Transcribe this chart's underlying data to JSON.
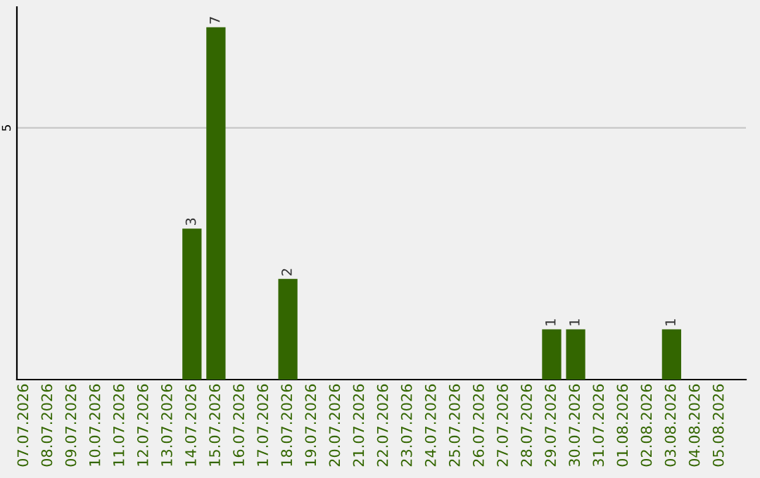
{
  "chart_data": {
    "type": "bar",
    "categories": [
      "07.07.2026",
      "08.07.2026",
      "09.07.2026",
      "10.07.2026",
      "11.07.2026",
      "12.07.2026",
      "13.07.2026",
      "14.07.2026",
      "15.07.2026",
      "16.07.2026",
      "17.07.2026",
      "18.07.2026",
      "19.07.2026",
      "20.07.2026",
      "21.07.2026",
      "22.07.2026",
      "23.07.2026",
      "24.07.2026",
      "25.07.2026",
      "26.07.2026",
      "27.07.2026",
      "28.07.2026",
      "29.07.2026",
      "30.07.2026",
      "31.07.2026",
      "01.08.2026",
      "02.08.2026",
      "03.08.2026",
      "04.08.2026",
      "05.08.2026"
    ],
    "values": [
      0,
      0,
      0,
      0,
      0,
      0,
      0,
      3,
      7,
      0,
      0,
      2,
      0,
      0,
      0,
      0,
      0,
      0,
      0,
      0,
      0,
      0,
      1,
      1,
      0,
      0,
      0,
      1,
      0,
      0
    ],
    "color": "#336600",
    "value_labels": [
      null,
      null,
      null,
      null,
      null,
      null,
      null,
      "3",
      "7",
      null,
      null,
      "2",
      null,
      null,
      null,
      null,
      null,
      null,
      null,
      null,
      null,
      null,
      "1",
      "1",
      null,
      null,
      null,
      "1",
      null,
      null
    ],
    "ylim": [
      0,
      7.4
    ],
    "yticks": [
      5
    ],
    "grid": "y"
  }
}
